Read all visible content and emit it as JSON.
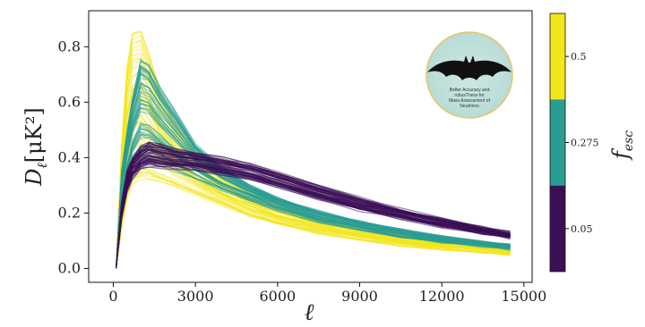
{
  "chart_data": {
    "type": "line",
    "xlabel": "ℓ",
    "ylabel_main": "D",
    "ylabel_sub": "ℓ",
    "ylabel_units": "[μK²]",
    "xlim": [
      -900,
      15300
    ],
    "ylim": [
      -0.05,
      0.93
    ],
    "x_ticks": [
      0,
      3000,
      6000,
      9000,
      12000,
      15000
    ],
    "x_tick_labels": [
      "0",
      "3000",
      "6000",
      "9000",
      "12000",
      "15000"
    ],
    "y_ticks": [
      0.0,
      0.2,
      0.4,
      0.6,
      0.8
    ],
    "y_tick_labels": [
      "0.0",
      "0.2",
      "0.4",
      "0.6",
      "0.8"
    ],
    "grid": false,
    "x_samples": [
      100,
      300,
      500,
      700,
      1000,
      1300,
      1700,
      2200,
      3000,
      4000,
      5000,
      6000,
      7500,
      9000,
      10500,
      12000,
      13500,
      14500
    ],
    "series": [
      {
        "f_esc": 0.05,
        "color": "#3b0f55",
        "envelope_low": [
          0.0,
          0.18,
          0.28,
          0.33,
          0.36,
          0.37,
          0.365,
          0.36,
          0.355,
          0.34,
          0.32,
          0.29,
          0.25,
          0.21,
          0.18,
          0.15,
          0.125,
          0.11
        ],
        "envelope_high": [
          0.0,
          0.24,
          0.35,
          0.4,
          0.44,
          0.46,
          0.45,
          0.435,
          0.42,
          0.4,
          0.38,
          0.35,
          0.3,
          0.255,
          0.215,
          0.18,
          0.15,
          0.13
        ]
      },
      {
        "f_esc": 0.275,
        "color": "#2a9d93",
        "envelope_low": [
          0.0,
          0.2,
          0.3,
          0.36,
          0.38,
          0.38,
          0.37,
          0.35,
          0.32,
          0.28,
          0.245,
          0.21,
          0.17,
          0.14,
          0.115,
          0.095,
          0.08,
          0.07
        ],
        "envelope_high": [
          0.0,
          0.35,
          0.5,
          0.62,
          0.76,
          0.74,
          0.66,
          0.58,
          0.45,
          0.36,
          0.3,
          0.255,
          0.205,
          0.17,
          0.14,
          0.115,
          0.095,
          0.085
        ]
      },
      {
        "f_esc": 0.5,
        "color": "#f2e51b",
        "envelope_low": [
          0.0,
          0.15,
          0.26,
          0.31,
          0.33,
          0.33,
          0.32,
          0.3,
          0.27,
          0.23,
          0.19,
          0.16,
          0.13,
          0.105,
          0.085,
          0.07,
          0.06,
          0.05
        ],
        "envelope_high": [
          0.0,
          0.45,
          0.75,
          0.88,
          0.89,
          0.8,
          0.66,
          0.55,
          0.43,
          0.34,
          0.28,
          0.235,
          0.19,
          0.155,
          0.125,
          0.105,
          0.09,
          0.08
        ]
      }
    ],
    "colorbar": {
      "label_main": "f",
      "label_sub": "esc",
      "bands": [
        {
          "color": "#f2e51b",
          "label": "0.5"
        },
        {
          "color": "#2a9d93",
          "label": "0.275"
        },
        {
          "color": "#3b0f55",
          "label": "0.05"
        }
      ]
    },
    "logo": {
      "text_lines": [
        "Better Accuracy and",
        "robusTness for",
        "Mass Assessment of",
        "Neutrinos"
      ]
    }
  }
}
